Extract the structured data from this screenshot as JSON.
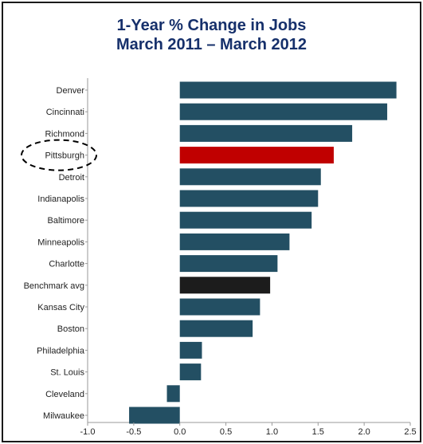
{
  "chart_data": {
    "type": "bar",
    "orientation": "horizontal",
    "title": "1-Year % Change in Jobs",
    "subtitle": "March 2011 – March 2012",
    "categories": [
      "Denver",
      "Cincinnati",
      "Richmond",
      "Pittsburgh",
      "Detroit",
      "Indianapolis",
      "Baltimore",
      "Minneapolis",
      "Charlotte",
      "Benchmark avg",
      "Kansas City",
      "Boston",
      "Philadelphia",
      "St. Louis",
      "Cleveland",
      "Milwaukee"
    ],
    "values": [
      2.35,
      2.25,
      1.87,
      1.67,
      1.53,
      1.5,
      1.43,
      1.19,
      1.06,
      0.98,
      0.87,
      0.79,
      0.24,
      0.23,
      -0.14,
      -0.55
    ],
    "xlim": [
      -1.0,
      2.5
    ],
    "xticks": [
      "-1.0",
      "-0.5",
      "0.0",
      "0.5",
      "1.0",
      "1.5",
      "2.0",
      "2.5"
    ],
    "xlabel": "",
    "ylabel": "",
    "grid": false,
    "highlight": {
      "Pittsburgh": "#c00000",
      "Benchmark avg": "#1c1c1c"
    },
    "annotation": {
      "type": "dashed-ellipse",
      "target": "Pittsburgh"
    },
    "colors": {
      "bar": "#234f63",
      "title": "#16306b"
    }
  }
}
